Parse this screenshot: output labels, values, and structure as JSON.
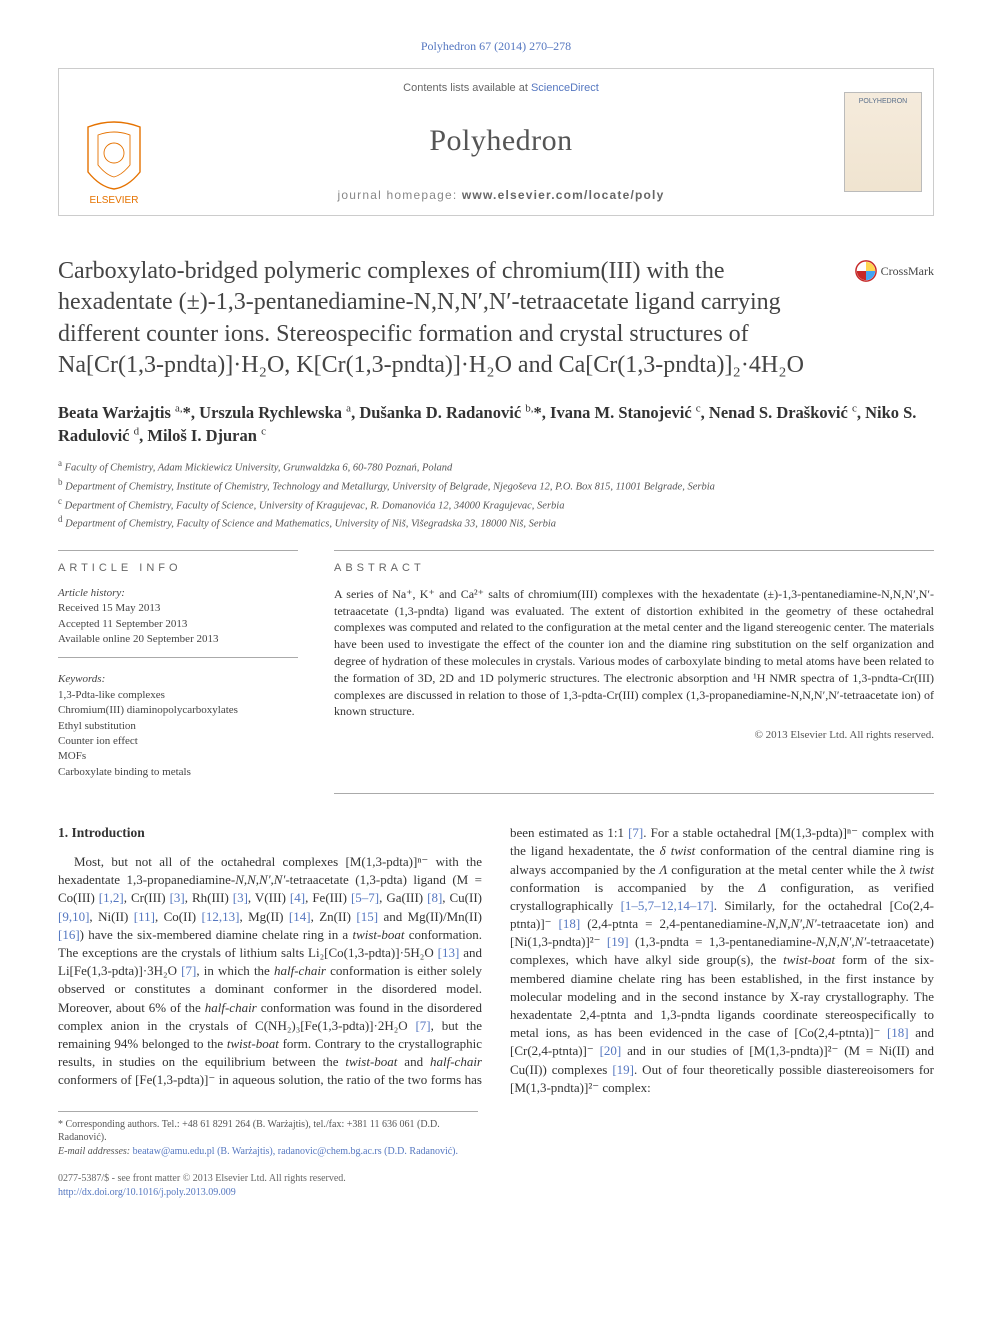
{
  "citation": "Polyhedron 67 (2014) 270–278",
  "header": {
    "contents_prefix": "Contents lists available at ",
    "contents_link": "ScienceDirect",
    "journal": "Polyhedron",
    "homepage_label": "journal homepage: ",
    "homepage_url": "www.elsevier.com/locate/poly",
    "publisher": "ELSEVIER",
    "cover_label": "POLYHEDRON"
  },
  "crossmark": "CrossMark",
  "title": "Carboxylato-bridged polymeric complexes of chromium(III) with the hexadentate (±)-1,3-pentanediamine-N,N,N′,N′-tetraacetate ligand carrying different counter ions. Stereospecific formation and crystal structures of Na[Cr(1,3-pndta)]·H₂O, K[Cr(1,3-pndta)]·H₂O and Ca[Cr(1,3-pndta)]₂·4H₂O",
  "authors_html": "Beata Warżajtis <sup>a,</sup>*, Urszula Rychlewska <sup>a</sup>, Dušanka D. Radanović <sup>b,</sup>*, Ivana M. Stanojević <sup>c</sup>, Nenad S. Drašković <sup>c</sup>, Niko S. Radulović <sup>d</sup>, Miloš I. Djuran <sup>c</sup>",
  "affiliations": [
    "Faculty of Chemistry, Adam Mickiewicz University, Grunwaldzka 6, 60-780 Poznań, Poland",
    "Department of Chemistry, Institute of Chemistry, Technology and Metallurgy, University of Belgrade, Njegoševa 12, P.O. Box 815, 11001 Belgrade, Serbia",
    "Department of Chemistry, Faculty of Science, University of Kragujevac, R. Domanovića 12, 34000 Kragujevac, Serbia",
    "Department of Chemistry, Faculty of Science and Mathematics, University of Niš, Višegradska 33, 18000 Niš, Serbia"
  ],
  "affil_letters": [
    "a",
    "b",
    "c",
    "d"
  ],
  "article_info_heading": "ARTICLE INFO",
  "abstract_heading": "ABSTRACT",
  "history_label": "Article history:",
  "history": [
    "Received 15 May 2013",
    "Accepted 11 September 2013",
    "Available online 20 September 2013"
  ],
  "keywords_label": "Keywords:",
  "keywords": [
    "1,3-Pdta-like complexes",
    "Chromium(III) diaminopolycarboxylates",
    "Ethyl substitution",
    "Counter ion effect",
    "MOFs",
    "Carboxylate binding to metals"
  ],
  "abstract": "A series of Na⁺, K⁺ and Ca²⁺ salts of chromium(III) complexes with the hexadentate (±)-1,3-pentanediamine-N,N,N′,N′-tetraacetate (1,3-pndta) ligand was evaluated. The extent of distortion exhibited in the geometry of these octahedral complexes was computed and related to the configuration at the metal center and the ligand stereogenic center. The materials have been used to investigate the effect of the counter ion and the diamine ring substitution on the self organization and degree of hydration of these molecules in crystals. Various modes of carboxylate binding to metal atoms have been related to the formation of 3D, 2D and 1D polymeric structures. The electronic absorption and ¹H NMR spectra of 1,3-pndta-Cr(III) complexes are discussed in relation to those of 1,3-pdta-Cr(III) complex (1,3-propanediamine-N,N,N′,N′-tetraacetate ion) of known structure.",
  "copyright": "© 2013 Elsevier Ltd. All rights reserved.",
  "intro_heading": "1. Introduction",
  "intro_html": "Most, but not all of the octahedral complexes [M(1,3-pdta)]ⁿ⁻ with the hexadentate 1,3-propanediamine-<i>N,N,N′,N′</i>-tetraacetate (1,3-pdta) ligand (M = Co(III) <span class='cite'>[1,2]</span>, Cr(III) <span class='cite'>[3]</span>, Rh(III) <span class='cite'>[3]</span>, V(III) <span class='cite'>[4]</span>, Fe(III) <span class='cite'>[5–7]</span>, Ga(III) <span class='cite'>[8]</span>, Cu(II) <span class='cite'>[9,10]</span>, Ni(II) <span class='cite'>[11]</span>, Co(II) <span class='cite'>[12,13]</span>, Mg(II) <span class='cite'>[14]</span>, Zn(II) <span class='cite'>[15]</span> and Mg(II)/Mn(II) <span class='cite'>[16]</span>) have the six-membered diamine chelate ring in a <i>twist-boat</i> conformation. The exceptions are the crystals of lithium salts Li₂[Co(1,3-pdta)]·5H₂O <span class='cite'>[13]</span> and Li[Fe(1,3-pdta)]·3H₂O <span class='cite'>[7]</span>, in which the <i>half-chair</i> conformation is either solely observed or constitutes a dominant conformer in the disordered model. Moreover, about 6% of the <i>half-chair</i> conformation was found in the disordered complex anion in the crystals of C(NH₂)₃[Fe(1,3-pdta)]·2H₂O <span class='cite'>[7]</span>, but the remaining 94% belonged to the <i>twist-boat</i> form. Contrary to the crystallographic results, in studies on the equilibrium between the <i>twist-boat</i> and <i>half-chair</i> conformers of [Fe(1,3-pdta)]⁻ in aqueous solution, the ratio of the two forms has been estimated as 1:1 <span class='cite'>[7]</span>. For a stable octahedral [M(1,3-pdta)]ⁿ⁻ complex with the ligand hexadentate, the <i>δ twist</i> conformation of the central diamine ring is always accompanied by the <i>Λ</i> configuration at the metal center while the <i>λ twist</i> conformation is accompanied by the <i>Δ</i> configuration, as verified crystallographically <span class='cite'>[1–5,7–12,14–17]</span>. Similarly, for the octahedral [Co(2,4-ptnta)]⁻ <span class='cite'>[18]</span> (2,4-ptnta = 2,4-pentanediamine-<i>N,N,N′,N′</i>-tetraacetate ion) and [Ni(1,3-pndta)]²⁻ <span class='cite'>[19]</span> (1,3-pndta = 1,3-pentanediamine-<i>N,N,N′,N′</i>-tetraacetate) complexes, which have alkyl side group(s), the <i>twist-boat</i> form of the six-membered diamine chelate ring has been established, in the first instance by molecular modeling and in the second instance by X-ray crystallography. The hexadentate 2,4-ptnta and 1,3-pndta ligands coordinate stereospecifically to metal ions, as has been evidenced in the case of [Co(2,4-ptnta)]⁻ <span class='cite'>[18]</span> and [Cr(2,4-ptnta)]⁻ <span class='cite'>[20]</span> and in our studies of [M(1,3-pndta)]²⁻ (M = Ni(II) and Cu(II)) complexes <span class='cite'>[19]</span>. Out of four theoretically possible diastereoisomers for [M(1,3-pndta)]²⁻ complex:",
  "footnote_corr": "* Corresponding authors. Tel.: +48 61 8291 264 (B. Warżajtis), tel./fax: +381 11 636 061 (D.D. Radanović).",
  "footnote_email_label": "E-mail addresses: ",
  "footnote_emails": "beataw@amu.edu.pl (B. Warżajtis), radanovic@chem.bg.ac.rs (D.D. Radanović).",
  "footer_issn": "0277-5387/$ - see front matter © 2013 Elsevier Ltd. All rights reserved.",
  "footer_doi": "http://dx.doi.org/10.1016/j.poly.2013.09.009",
  "colors": {
    "link": "#5577c0",
    "rule": "#aaaaaa",
    "text": "#333333",
    "muted": "#666666"
  }
}
